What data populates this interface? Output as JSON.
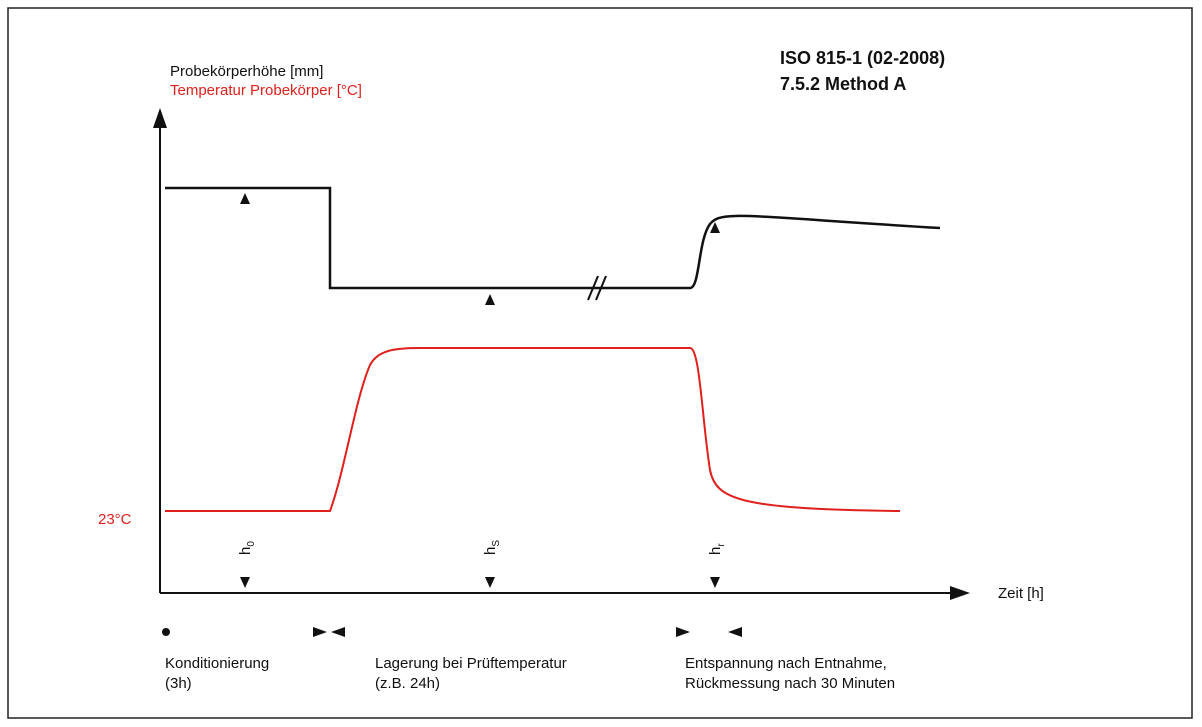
{
  "standard": {
    "line1": "ISO 815-1 (02-2008)",
    "line2": "7.5.2 Method A"
  },
  "axes": {
    "y_label": "Probekörperhöhe [mm]",
    "y_label_temp": "Temperatur Probekörper [°C]",
    "temp_ref": "23°C",
    "x_label": "Zeit [h]"
  },
  "heights": [
    {
      "main": "h",
      "sub": "0"
    },
    {
      "main": "h",
      "sub": "S"
    },
    {
      "main": "h",
      "sub": "r"
    }
  ],
  "phases": [
    {
      "line1": "Konditionierung",
      "line2": "(3h)"
    },
    {
      "line1": "Lagerung bei Prüftemperatur",
      "line2": "(z.B. 24h)"
    },
    {
      "line1": "Entspannung nach Entnahme,",
      "line2": "Rückmessung nach 30 Minuten"
    }
  ]
}
